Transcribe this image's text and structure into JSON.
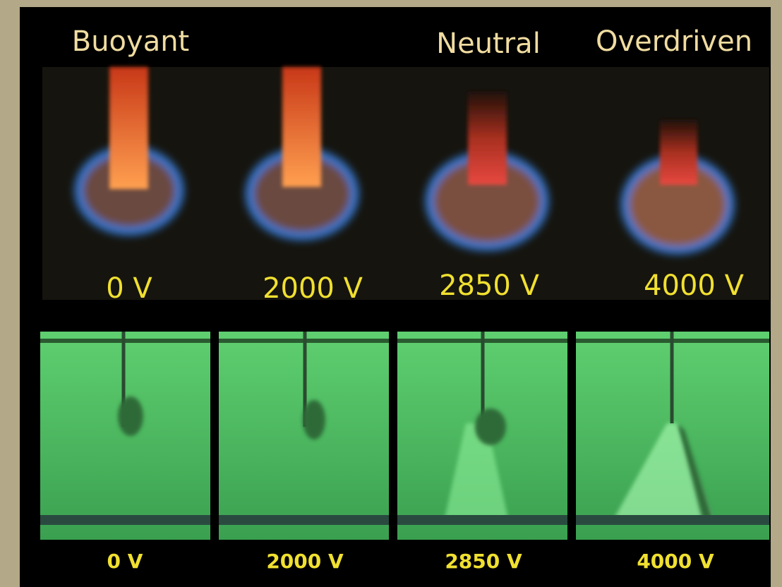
{
  "header_labels": [
    "Buoyant",
    "Neutral",
    "Overdriven"
  ],
  "flame_panels": [
    {
      "voltage": "0 V"
    },
    {
      "voltage": "2000 V"
    },
    {
      "voltage": "2850 V"
    },
    {
      "voltage": "4000 V"
    }
  ],
  "schlieren_panels": [
    {
      "voltage": "0 V"
    },
    {
      "voltage": "2000 V"
    },
    {
      "voltage": "2850 V"
    },
    {
      "voltage": "4000 V"
    }
  ]
}
